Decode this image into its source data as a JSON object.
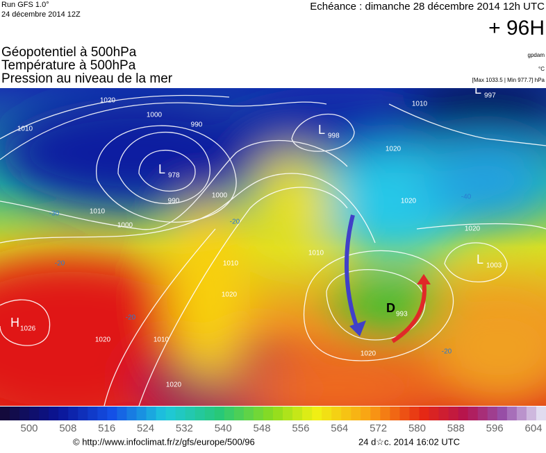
{
  "header": {
    "run": "Run GFS 1.0°",
    "date": "24 décembre 2014 12Z",
    "echeance": "Echéance : dimanche 28 décembre 2014 12h UTC",
    "lead": "+ 96H",
    "fields": [
      "Géopotentiel à 500hPa",
      "Température à 500hPa",
      "Pression au niveau de la mer"
    ],
    "units": [
      "gpdam",
      "°C",
      "[Max 1033.5 | Min 977.7] hPa"
    ]
  },
  "map": {
    "centers": [
      {
        "letter": "L",
        "value": "997"
      },
      {
        "letter": "L",
        "value": "998"
      },
      {
        "letter": "L",
        "value": "978"
      },
      {
        "letter": "L",
        "value": "1003"
      },
      {
        "letter": "H",
        "value": "1026"
      },
      {
        "letter": "D",
        "value": "993"
      }
    ],
    "isobar_labels": [
      "1020",
      "1010",
      "1000",
      "990",
      "990",
      "1010",
      "1000",
      "1000",
      "1010",
      "1020",
      "1010",
      "1020",
      "1020",
      "1010",
      "1020",
      "1020",
      "1020",
      "1020",
      "1010"
    ],
    "temp_labels": [
      "-30",
      "-20",
      "-20",
      "-20",
      "-40",
      "-20"
    ]
  },
  "scale": {
    "labels": [
      500,
      508,
      516,
      524,
      532,
      540,
      548,
      556,
      564,
      572,
      580,
      588,
      596,
      604
    ]
  },
  "footer": {
    "source": "© http://www.infoclimat.fr/z/gfs/europe/500/96",
    "time": "24 d☆c. 2014 16:02 UTC"
  }
}
